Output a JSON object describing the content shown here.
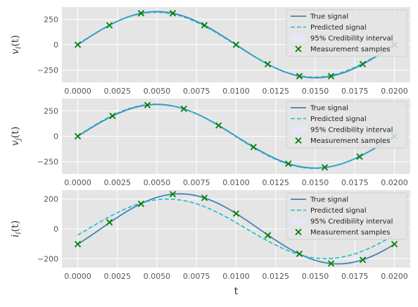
{
  "chart_data": [
    {
      "type": "line",
      "ylabel_main": "v",
      "ylabel_sub": "i",
      "ylabel_arg": "(t)",
      "xlim": [
        -0.001,
        0.021
      ],
      "ylim": [
        -370,
        370
      ],
      "xticks": [
        0.0,
        0.0025,
        0.005,
        0.0075,
        0.01,
        0.0125,
        0.015,
        0.0175,
        0.02
      ],
      "xtick_labels": [
        "0.0000",
        "0.0025",
        "0.0050",
        "0.0075",
        "0.0100",
        "0.0125",
        "0.0150",
        "0.0175",
        "0.0200"
      ],
      "yticks": [
        -250,
        0,
        250
      ],
      "ytick_labels": [
        "−250",
        "0",
        "250"
      ],
      "grid": true,
      "legend": "top-right",
      "series": [
        {
          "name": "True signal",
          "kind": "line",
          "color": "#4682b4",
          "amplitude": 325,
          "phase_deg": 0,
          "freq_hz": 50
        },
        {
          "name": "Predicted signal",
          "kind": "dashed",
          "color": "#17becf",
          "amplitude": 318,
          "phase_deg": 1,
          "freq_hz": 50
        },
        {
          "name": "95% Credibility interval",
          "kind": "band",
          "color": "#e6e6fa"
        },
        {
          "name": "Measurement samples",
          "kind": "marker",
          "color": "#008000",
          "x": [
            0.0,
            0.002,
            0.004,
            0.006,
            0.008,
            0.01,
            0.012,
            0.014,
            0.016,
            0.018,
            0.02
          ],
          "y": [
            0,
            191,
            309,
            309,
            191,
            0,
            -191,
            -309,
            -309,
            -191,
            0
          ]
        }
      ]
    },
    {
      "type": "line",
      "ylabel_main": "v",
      "ylabel_sub": "j",
      "ylabel_arg": "(t)",
      "xlim": [
        -0.001,
        0.021
      ],
      "ylim": [
        -370,
        370
      ],
      "xticks": [
        0.0,
        0.0025,
        0.005,
        0.0075,
        0.01,
        0.0125,
        0.015,
        0.0175,
        0.02
      ],
      "xtick_labels": [
        "0.0000",
        "0.0025",
        "0.0050",
        "0.0075",
        "0.0100",
        "0.0125",
        "0.0150",
        "0.0175",
        "0.0200"
      ],
      "yticks": [
        -250,
        0,
        250
      ],
      "ytick_labels": [
        "−250",
        "0",
        "250"
      ],
      "grid": true,
      "legend": "top-right",
      "series": [
        {
          "name": "True signal",
          "kind": "line",
          "color": "#4682b4",
          "amplitude": 312,
          "phase_deg": 0,
          "freq_hz": 50
        },
        {
          "name": "Predicted signal",
          "kind": "dashed",
          "color": "#17becf",
          "amplitude": 316,
          "phase_deg": 1,
          "freq_hz": 50
        },
        {
          "name": "95% Credibility interval",
          "kind": "band",
          "color": "#e6e6fa"
        },
        {
          "name": "Measurement samples",
          "kind": "marker",
          "color": "#008000",
          "x": [
            0.0,
            0.0022,
            0.0044,
            0.0067,
            0.0089,
            0.0111,
            0.0133,
            0.0156,
            0.0178,
            0.02
          ],
          "y": [
            0,
            200,
            306,
            270,
            106,
            -106,
            -270,
            -306,
            -200,
            0
          ]
        }
      ]
    },
    {
      "type": "line",
      "ylabel_main": "i",
      "ylabel_sub": "i",
      "ylabel_arg": "(t)",
      "xlabel": "t",
      "xlim": [
        -0.001,
        0.021
      ],
      "ylim": [
        -260,
        260
      ],
      "xticks": [
        0.0,
        0.0025,
        0.005,
        0.0075,
        0.01,
        0.0125,
        0.015,
        0.0175,
        0.02
      ],
      "xtick_labels": [
        "0.0000",
        "0.0025",
        "0.0050",
        "0.0075",
        "0.0100",
        "0.0125",
        "0.0150",
        "0.0175",
        "0.0200"
      ],
      "yticks": [
        -200,
        0,
        200
      ],
      "ytick_labels": [
        "−200",
        "0",
        "200"
      ],
      "grid": true,
      "legend": "top-right",
      "series": [
        {
          "name": "True signal",
          "kind": "line",
          "color": "#4682b4",
          "amplitude": 235,
          "phase_deg": -26,
          "freq_hz": 50
        },
        {
          "name": "Predicted signal",
          "kind": "dashed",
          "color": "#17becf",
          "amplitude": 200,
          "phase_deg": -12,
          "freq_hz": 50
        },
        {
          "name": "95% Credibility interval",
          "kind": "band",
          "color": "#e6e6fa"
        },
        {
          "name": "Measurement samples",
          "kind": "marker",
          "color": "#008000",
          "x": [
            0.0,
            0.002,
            0.004,
            0.006,
            0.008,
            0.01,
            0.012,
            0.014,
            0.016,
            0.018,
            0.02
          ],
          "y": [
            -103,
            44,
            168,
            233,
            208,
            103,
            -44,
            -168,
            -233,
            -208,
            -103
          ]
        }
      ]
    }
  ]
}
